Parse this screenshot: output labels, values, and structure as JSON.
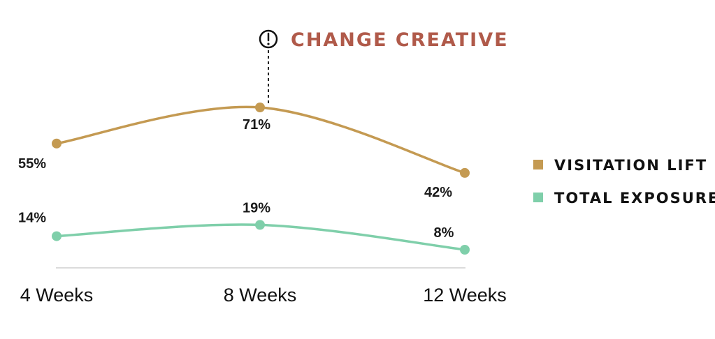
{
  "chart_data": {
    "type": "line",
    "categories": [
      "4 Weeks",
      "8 Weeks",
      "12 Weeks"
    ],
    "series": [
      {
        "name": "VISITATION LIFT",
        "values": [
          55,
          71,
          42
        ],
        "labels": [
          "55%",
          "71%",
          "42%"
        ],
        "color": "#c49a52"
      },
      {
        "name": "TOTAL EXPOSURE",
        "values": [
          14,
          19,
          8
        ],
        "labels": [
          "14%",
          "19%",
          "8%"
        ],
        "color": "#7fcfaa"
      }
    ],
    "annotation": {
      "text": "CHANGE CREATIVE",
      "category": "8 Weeks",
      "icon": "exclamation-circle-icon",
      "color": "#b05a4a"
    },
    "legend_position": "right",
    "grid": false
  }
}
